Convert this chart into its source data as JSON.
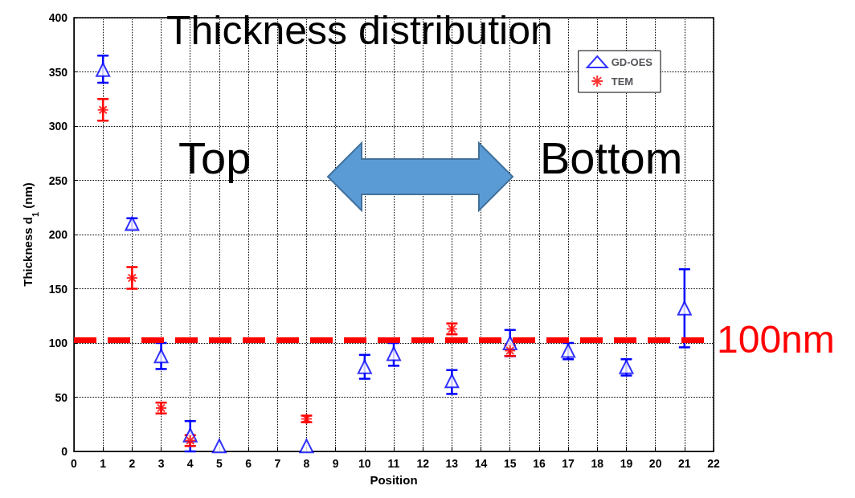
{
  "chart_data": {
    "type": "scatter",
    "title": "Thickness distribution",
    "xlabel": "Position",
    "ylabel": "Thickness d$_{1}$ (nm)",
    "xlim": [
      0,
      22
    ],
    "xticks": [
      0,
      1,
      2,
      3,
      4,
      5,
      6,
      7,
      8,
      9,
      10,
      11,
      12,
      13,
      14,
      15,
      16,
      17,
      18,
      19,
      20,
      21,
      22
    ],
    "ylim": [
      0,
      400
    ],
    "yticks": [
      0,
      50,
      100,
      150,
      200,
      250,
      300,
      350,
      400
    ],
    "grid": true,
    "legend": "top right",
    "annotations": [
      "Top",
      "Bottom"
    ],
    "ref_lines": [
      {
        "axis": "y",
        "value": 103,
        "label": "100nm",
        "color": "#ff0000",
        "line_style": "dashed"
      }
    ],
    "series": [
      {
        "name": "GD-OES",
        "color": "#0000ff",
        "marker": "triangle",
        "x": [
          1,
          2,
          3,
          4,
          5,
          8,
          10,
          11,
          13,
          15,
          17,
          19,
          21
        ],
        "values": [
          352,
          210,
          88,
          15,
          5,
          5,
          78,
          90,
          65,
          100,
          93,
          78,
          132
        ],
        "errors": [
          [
            340,
            365
          ],
          [
            205,
            215
          ],
          [
            76,
            100
          ],
          [
            0,
            28
          ],
          null,
          null,
          [
            67,
            89
          ],
          [
            79,
            100
          ],
          [
            53,
            75
          ],
          [
            88,
            112
          ],
          [
            85,
            100
          ],
          [
            70,
            85
          ],
          [
            96,
            168
          ]
        ]
      },
      {
        "name": "TEM",
        "color": "#ff0000",
        "marker": "cross",
        "x": [
          1,
          2,
          3,
          4,
          8,
          13,
          15
        ],
        "values": [
          315,
          160,
          40,
          10,
          30,
          113,
          93
        ],
        "errors": [
          [
            305,
            325
          ],
          [
            150,
            170
          ],
          [
            35,
            45
          ],
          [
            5,
            15
          ],
          [
            27,
            33
          ],
          [
            108,
            118
          ],
          [
            88,
            98
          ]
        ]
      }
    ]
  }
}
